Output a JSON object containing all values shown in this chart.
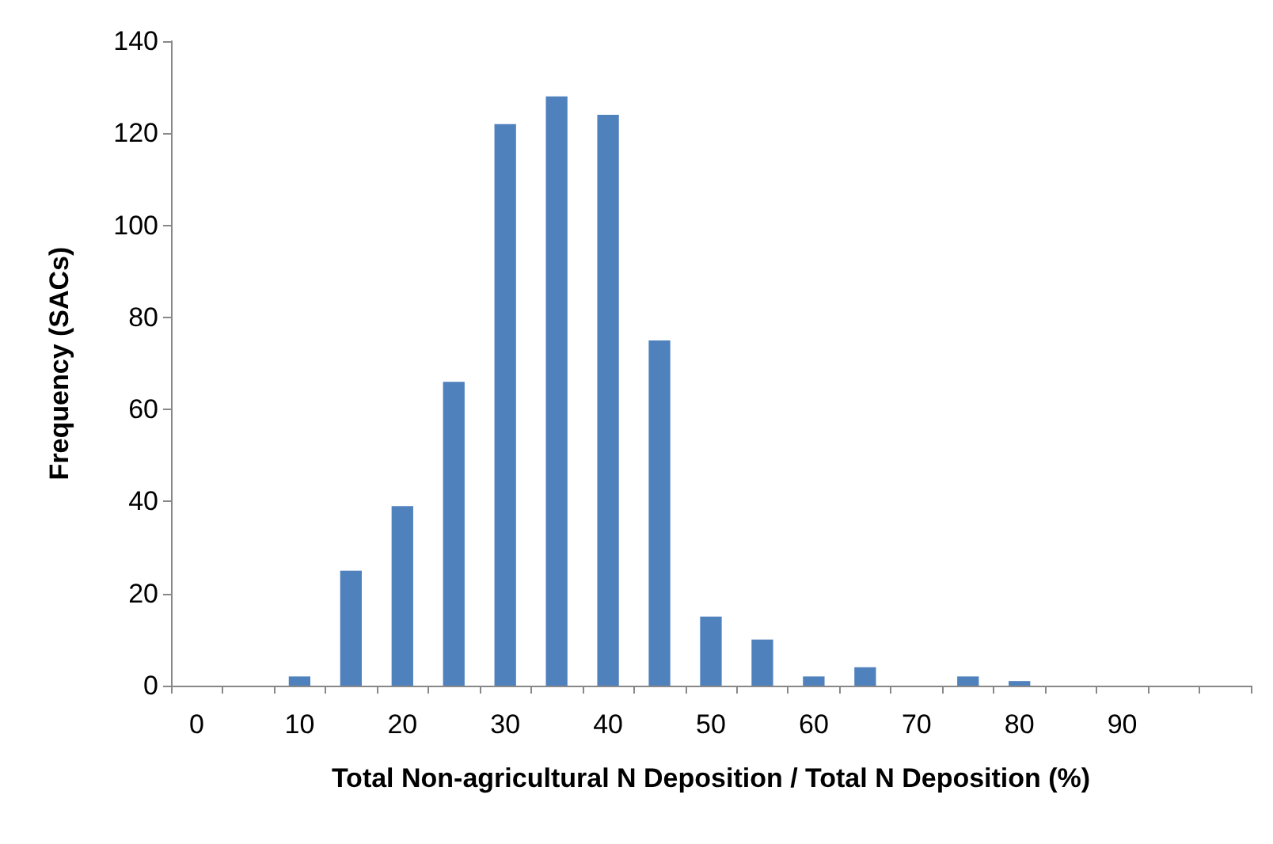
{
  "chart_data": {
    "type": "bar",
    "xlabel": "Total Non-agricultural N Deposition / Total N Deposition (%)",
    "ylabel": "Frequency (SACs)",
    "categories": [
      "0",
      null,
      "10",
      null,
      "20",
      null,
      "30",
      null,
      "40",
      null,
      "50",
      null,
      "60",
      null,
      "70",
      null,
      "80",
      null,
      "90",
      null,
      null
    ],
    "values": [
      0,
      0,
      2,
      25,
      39,
      66,
      122,
      128,
      124,
      75,
      15,
      10,
      2,
      4,
      0,
      2,
      1,
      0,
      0,
      0,
      0
    ],
    "color": "#4f81bd",
    "ylim": [
      0,
      140
    ],
    "yticks": [
      0,
      20,
      40,
      60,
      80,
      100,
      120,
      140
    ],
    "grid": false
  }
}
